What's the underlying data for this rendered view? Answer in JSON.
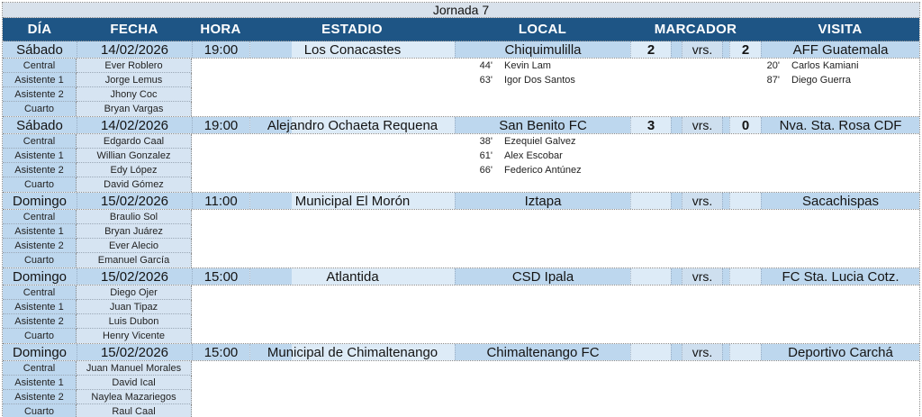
{
  "title": "Jornada 7",
  "columns": [
    "DÍA",
    "FECHA",
    "HORA",
    "ESTADIO",
    "LOCAL",
    "MARCADOR",
    "VISITA"
  ],
  "vrs_label": "vrs.",
  "official_roles": [
    "Central",
    "Asistente 1",
    "Asistente 2",
    "Cuarto"
  ],
  "matches": [
    {
      "day": "Sábado",
      "date": "14/02/2026",
      "time": "19:00",
      "stadium": "Los Conacastes",
      "home": "Chiquimulilla",
      "score_home": "2",
      "score_away": "2",
      "away": "AFF Guatemala",
      "officials": [
        "Ever Roblero",
        "Jorge Lemus",
        "Jhony Coc",
        "Bryan Vargas"
      ],
      "home_goals": [
        {
          "minute": "44'",
          "player": "Kevin Lam"
        },
        {
          "minute": "63'",
          "player": "Igor Dos Santos"
        }
      ],
      "away_goals": [
        {
          "minute": "20'",
          "player": "Carlos Kamiani"
        },
        {
          "minute": "87'",
          "player": "Diego Guerra"
        }
      ]
    },
    {
      "day": "Sábado",
      "date": "14/02/2026",
      "time": "19:00",
      "stadium": "Alejandro Ochaeta Requena",
      "home": "San Benito FC",
      "score_home": "3",
      "score_away": "0",
      "away": "Nva. Sta. Rosa CDF",
      "officials": [
        "Edgardo Caal",
        "Willian Gonzalez",
        "Edy López",
        "David Gómez"
      ],
      "home_goals": [
        {
          "minute": "38'",
          "player": "Ezequiel Galvez"
        },
        {
          "minute": "61'",
          "player": "Alex Escobar"
        },
        {
          "minute": "66'",
          "player": "Federico Antúnez"
        }
      ],
      "away_goals": []
    },
    {
      "day": "Domingo",
      "date": "15/02/2026",
      "time": "11:00",
      "stadium": "Municipal El Morón",
      "home": "Iztapa",
      "score_home": "",
      "score_away": "",
      "away": "Sacachispas",
      "officials": [
        "Braulio Sol",
        "Bryan Juárez",
        "Ever Alecio",
        "Emanuel García"
      ],
      "home_goals": [],
      "away_goals": []
    },
    {
      "day": "Domingo",
      "date": "15/02/2026",
      "time": "15:00",
      "stadium": "Atlantida",
      "home": "CSD Ipala",
      "score_home": "",
      "score_away": "",
      "away": "FC Sta. Lucia Cotz.",
      "officials": [
        "Diego Ojer",
        "Juan Tipaz",
        "Luis Dubon",
        "Henry Vicente"
      ],
      "home_goals": [],
      "away_goals": []
    },
    {
      "day": "Domingo",
      "date": "15/02/2026",
      "time": "15:00",
      "stadium": "Municipal de Chimaltenango",
      "home": "Chimaltenango FC",
      "score_home": "",
      "score_away": "",
      "away": "Deportivo Carchá",
      "officials": [
        "Juan Manuel Morales",
        "David Ical",
        "Naylea Mazariegos",
        "Raul Caal"
      ],
      "home_goals": [],
      "away_goals": []
    }
  ],
  "colors": {
    "header_bg": "#1E5585",
    "header_text": "#FFFFFF",
    "title_bg": "#D8E1EB",
    "row_medium": "#BDD7EE",
    "row_light": "#DDEBF7",
    "vrs_bg": "#CEDFEF",
    "name_cell_bg": "#D6E4F2",
    "border_dotted": "#8A8A8A",
    "text_dark": "#141414"
  }
}
